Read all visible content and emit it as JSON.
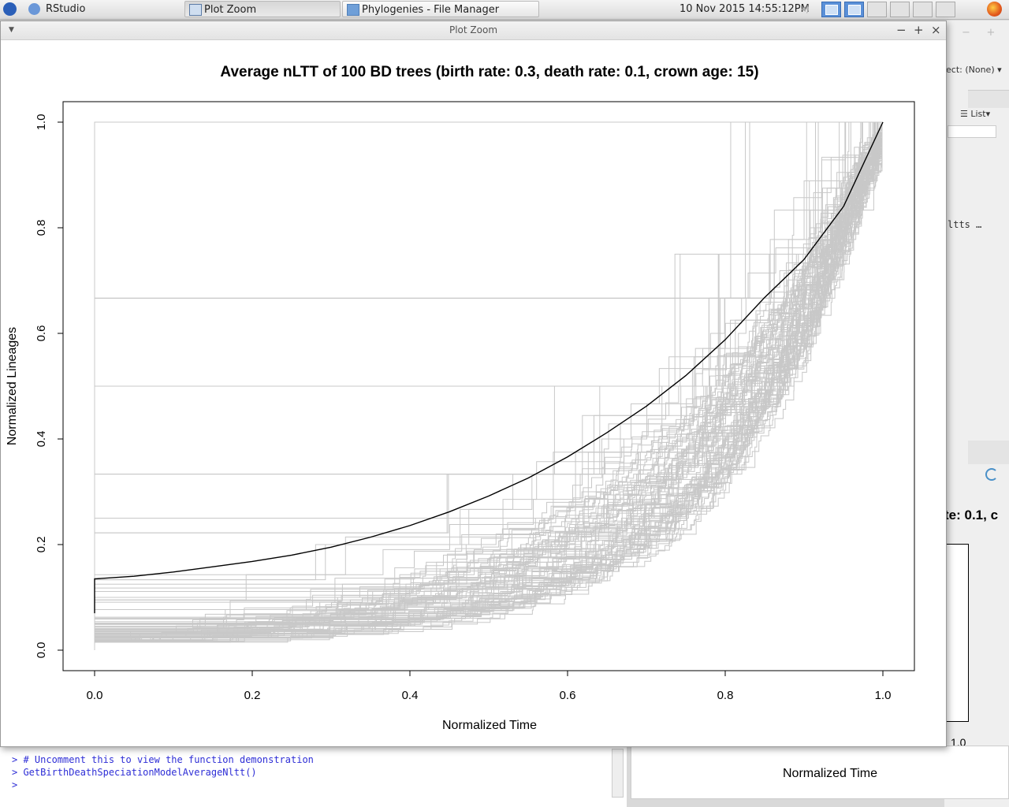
{
  "taskbar": {
    "app_menu": "RStudio",
    "tasks": [
      {
        "label": "Plot Zoom",
        "active": true
      },
      {
        "label": "Phylogenies - File Manager",
        "active": false
      }
    ],
    "clock": "10 Nov 2015 14:55:12PM"
  },
  "window": {
    "title": "Plot Zoom",
    "buttons": {
      "minimize": "−",
      "maximize": "+",
      "close": "×"
    }
  },
  "background": {
    "select_label": "ect: (None)",
    "list_label": "List",
    "env_item": "ltts …",
    "plot_title_fragment": "te: 0.1, c",
    "plot_tick_fragment": "1.0",
    "plot_xlabel": "Normalized Time",
    "console_lines": [
      "> # Uncomment this to view the function demonstration",
      "> GetBirthDeathSpeciationModelAverageNltt()",
      "> "
    ]
  },
  "chart_data": {
    "type": "line",
    "title": "Average nLTT of 100 BD trees (birth rate: 0.3, death rate: 0.1, crown age: 15)",
    "xlabel": "Normalized Time",
    "ylabel": "Normalized Lineages",
    "xlim": [
      0,
      1
    ],
    "ylim": [
      0,
      1
    ],
    "xticks": [
      "0.0",
      "0.2",
      "0.4",
      "0.6",
      "0.8",
      "1.0"
    ],
    "yticks": [
      "0.0",
      "0.2",
      "0.4",
      "0.6",
      "0.8",
      "1.0"
    ],
    "grid": false,
    "individual_tree_count": 100,
    "individual_color": "#c8c8c8",
    "average_color": "#000000",
    "average_series": {
      "x": [
        0,
        0.05,
        0.1,
        0.15,
        0.2,
        0.25,
        0.3,
        0.35,
        0.4,
        0.45,
        0.5,
        0.55,
        0.6,
        0.65,
        0.7,
        0.75,
        0.8,
        0.85,
        0.9,
        0.95,
        1.0
      ],
      "y": [
        0.135,
        0.14,
        0.148,
        0.158,
        0.168,
        0.18,
        0.195,
        0.214,
        0.236,
        0.262,
        0.292,
        0.326,
        0.366,
        0.412,
        0.462,
        0.52,
        0.588,
        0.668,
        0.74,
        0.84,
        1.0
      ]
    }
  }
}
